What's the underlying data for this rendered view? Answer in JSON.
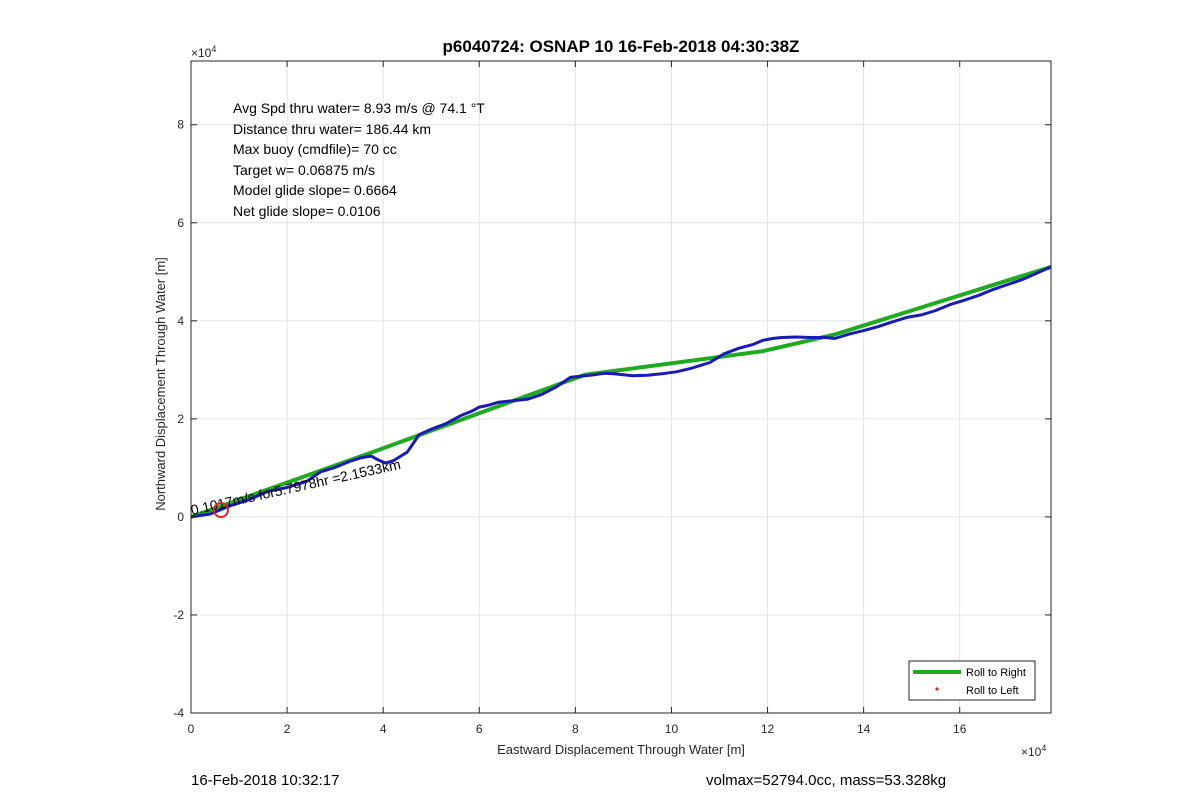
{
  "chart_data": {
    "type": "line",
    "title": "p6040724: OSNAP 10 16-Feb-2018 04:30:38Z",
    "xlabel": "Eastward Displacement Through Water [m]",
    "ylabel": "Northward Displacement Through Water [m]",
    "x_exponent_label": "×10",
    "x_exponent_power": "4",
    "y_exponent_label": "×10",
    "y_exponent_power": "4",
    "xlim": [
      0,
      179000
    ],
    "ylim": [
      -40000,
      93000
    ],
    "xticks": [
      0,
      20000,
      40000,
      60000,
      80000,
      100000,
      120000,
      140000,
      160000
    ],
    "xtick_labels": [
      "0",
      "2",
      "4",
      "6",
      "8",
      "10",
      "12",
      "14",
      "16"
    ],
    "yticks": [
      -40000,
      -20000,
      0,
      20000,
      40000,
      60000,
      80000
    ],
    "ytick_labels": [
      "-4",
      "-2",
      "0",
      "2",
      "4",
      "6",
      "8"
    ],
    "grid": true,
    "legend_position": "bottom-right",
    "annotations": [
      "Avg Spd thru water=  8.93 m/s @  74.1 °T",
      "Distance thru water= 186.44 km",
      "Max buoy (cmdfile)= 70 cc",
      "Target w= 0.06875 m/s",
      "Model glide slope= 0.6664",
      "Net glide slope= 0.0106"
    ],
    "segment_label": "0.1017m/s for5.7978hr =2.1533km",
    "series": [
      {
        "name": "Roll to Right",
        "color": "#1faa1f",
        "x": [
          0,
          40000,
          82000,
          119000,
          134000,
          179000
        ],
        "y": [
          0,
          14000,
          29000,
          33800,
          37200,
          51000
        ]
      },
      {
        "name": "Roll to Left",
        "color": "#e02020",
        "x": [],
        "y": []
      },
      {
        "name": "",
        "color": "#1a1ab8",
        "x": [
          0,
          4000,
          8000,
          12000,
          16000,
          20000,
          24000,
          27000,
          30000,
          33000,
          35500,
          37500,
          39000,
          40500,
          42000,
          45000,
          47500,
          50000,
          53000,
          56000,
          58500,
          60000,
          62000,
          64000,
          67000,
          70000,
          73000,
          76000,
          79000,
          82000,
          84000,
          86000,
          88000,
          90000,
          92000,
          95000,
          98000,
          101000,
          104000,
          108000,
          111000,
          114000,
          117000,
          119000,
          121000,
          123000,
          126000,
          129000,
          132000,
          134000,
          137000,
          140000,
          143000,
          146000,
          149000,
          152000,
          155000,
          158000,
          161000,
          164000,
          167000,
          170000,
          173000,
          176000,
          179000
        ],
        "y": [
          0,
          600,
          2200,
          3500,
          5200,
          6000,
          7200,
          9200,
          10100,
          11300,
          12100,
          12400,
          11600,
          11000,
          11400,
          13200,
          16800,
          17900,
          19000,
          20600,
          21600,
          22400,
          22800,
          23400,
          23700,
          24000,
          25000,
          26500,
          28500,
          28800,
          29000,
          29300,
          29200,
          29000,
          28800,
          28900,
          29200,
          29600,
          30300,
          31500,
          33300,
          34400,
          35200,
          36000,
          36400,
          36600,
          36700,
          36600,
          36600,
          36400,
          37300,
          38000,
          38800,
          39800,
          40700,
          41200,
          42100,
          43300,
          44200,
          45200,
          46400,
          47400,
          48400,
          49700,
          51000
        ]
      }
    ]
  },
  "footer": {
    "timestamp": "16-Feb-2018 10:32:17",
    "summary": "volmax=52794.0cc, mass=53.328kg"
  }
}
